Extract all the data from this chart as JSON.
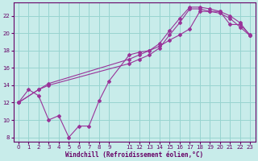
{
  "xlabel": "Windchill (Refroidissement éolien,°C)",
  "bg_color": "#c8ecea",
  "grid_color": "#98d4d0",
  "line_color": "#993399",
  "xlim": [
    -0.5,
    23.5
  ],
  "ylim": [
    7.5,
    23.5
  ],
  "xticks": [
    0,
    1,
    2,
    3,
    4,
    5,
    6,
    7,
    8,
    9,
    11,
    12,
    13,
    14,
    15,
    16,
    17,
    18,
    19,
    20,
    21,
    22,
    23
  ],
  "yticks": [
    8,
    10,
    12,
    14,
    16,
    18,
    20,
    22
  ],
  "line1_x": [
    0,
    1,
    2,
    3,
    4,
    5,
    6,
    7,
    8,
    9,
    11,
    12,
    13,
    14,
    15,
    16,
    17,
    18,
    19,
    20,
    21,
    22,
    23
  ],
  "line1_y": [
    12.0,
    13.5,
    12.8,
    10.0,
    10.5,
    8.0,
    9.3,
    9.3,
    12.2,
    14.5,
    17.5,
    17.8,
    18.0,
    18.5,
    19.2,
    19.8,
    20.5,
    22.5,
    22.5,
    22.5,
    21.0,
    21.0,
    19.8
  ],
  "line2_x": [
    0,
    2,
    3,
    11,
    12,
    13,
    14,
    15,
    16,
    17,
    18,
    19,
    20,
    21,
    22,
    23
  ],
  "line2_y": [
    12.0,
    13.5,
    14.0,
    16.5,
    17.0,
    17.5,
    18.3,
    19.8,
    21.2,
    22.8,
    22.8,
    22.5,
    22.3,
    21.7,
    20.7,
    19.7
  ],
  "line3_x": [
    0,
    2,
    3,
    11,
    12,
    13,
    14,
    15,
    16,
    17,
    18,
    19,
    20,
    21,
    22,
    23
  ],
  "line3_y": [
    12.0,
    13.5,
    14.2,
    17.0,
    17.5,
    18.0,
    18.8,
    20.3,
    21.7,
    23.0,
    23.0,
    22.8,
    22.5,
    22.0,
    21.2,
    19.7
  ]
}
